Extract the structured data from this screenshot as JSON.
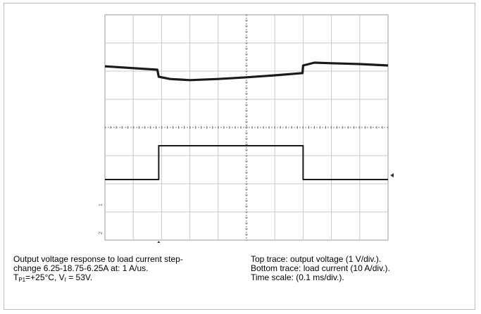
{
  "caption": {
    "left_line1": "Output voltage response to load current step-",
    "left_line2": "change 6.25-18.75-6.25A at: 1 A/us.",
    "left_line3_sym_t": "T",
    "left_line3_sub_p1": "P1",
    "left_line3_mid": "=+25°C, V",
    "left_line3_sub_i": "I",
    "left_line3_end": " = 53V.",
    "right_line1": "Top trace: output voltage (1 V/div.).",
    "right_line2": "Bottom trace: load current (10 A/div.).",
    "right_line3": "Time scale: (0.1 ms/div.)."
  },
  "chart_data": {
    "type": "line",
    "title": "",
    "grid": true,
    "x_divisions": 10,
    "y_divisions": 8,
    "x_unit": "div",
    "series": [
      {
        "x": [
          0,
          1.85,
          1.9,
          2.3,
          3.0,
          4.0,
          5.0,
          6.0,
          6.98,
          7.0,
          7.4,
          8.0,
          9.0,
          10.0
        ],
        "y": [
          6.17,
          6.05,
          5.8,
          5.72,
          5.68,
          5.72,
          5.78,
          5.85,
          5.93,
          6.2,
          6.3,
          6.28,
          6.25,
          6.2
        ]
      },
      {
        "x": [
          0,
          1.9,
          1.9,
          7.0,
          7.0,
          10.0
        ],
        "y": [
          2.15,
          2.15,
          3.35,
          3.35,
          2.15,
          2.15
        ]
      }
    ],
    "markers": [
      "1",
      "2"
    ]
  }
}
